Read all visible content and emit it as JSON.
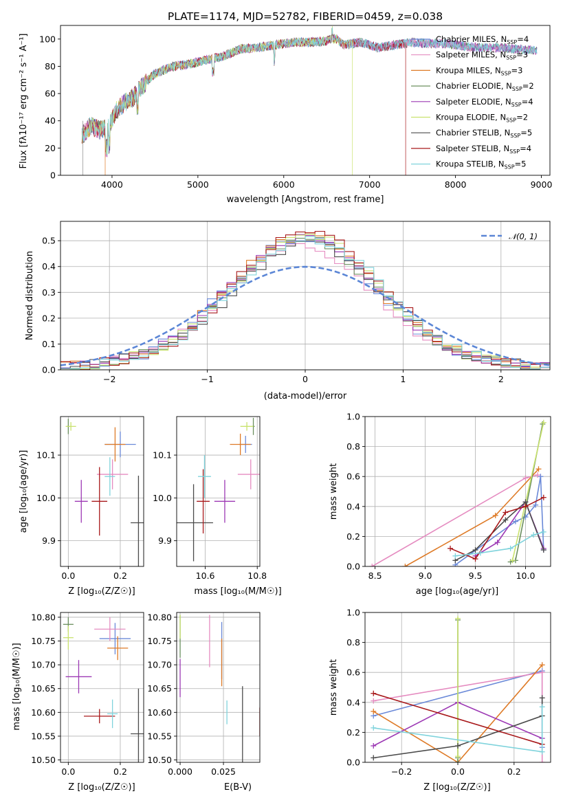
{
  "colors": [
    "#6a89d8",
    "#e58bc0",
    "#de7a26",
    "#6b8f5e",
    "#9c38b4",
    "#c9e26e",
    "#4a4a4a",
    "#a8191b",
    "#7fd3dc"
  ],
  "chart_data": [
    {
      "id": "spectrum",
      "type": "line",
      "title": "PLATE=1174, MJD=52782, FIBERID=0459, z=0.038",
      "xlabel": "wavelength [Angstrom, rest frame]",
      "ylabel": "Flux [fλ10⁻¹⁷ erg cm⁻² s⁻¹ A⁻¹]",
      "xlim": [
        3400,
        9100
      ],
      "ylim": [
        0,
        110
      ],
      "xticks": [
        "4000",
        "5000",
        "6000",
        "7000",
        "8000",
        "9000"
      ],
      "yticks": [
        "0",
        "20",
        "40",
        "60",
        "80",
        "100"
      ],
      "legend_position": "top-right",
      "series": [
        {
          "name": "Chabrier MILES, N",
          "sub": "SSP",
          "suffix": "=4"
        },
        {
          "name": "Salpeter MILES, N",
          "sub": "SSP",
          "suffix": "=3"
        },
        {
          "name": "Kroupa MILES, N",
          "sub": "SSP",
          "suffix": "=3"
        },
        {
          "name": "Chabrier ELODIE, N",
          "sub": "SSP",
          "suffix": "=2"
        },
        {
          "name": "Salpeter ELODIE, N",
          "sub": "SSP",
          "suffix": "=4"
        },
        {
          "name": "Kroupa ELODIE, N",
          "sub": "SSP",
          "suffix": "=2"
        },
        {
          "name": "Chabrier STELIB, N",
          "sub": "SSP",
          "suffix": "=5"
        },
        {
          "name": "Salpeter STELIB, N",
          "sub": "SSP",
          "suffix": "=4"
        },
        {
          "name": "Kroupa STELIB, N",
          "sub": "SSP",
          "suffix": "=5"
        }
      ],
      "continuum_x": [
        3650,
        3750,
        3850,
        3950,
        4050,
        4150,
        4250,
        4350,
        4500,
        4700,
        4900,
        5100,
        5300,
        5500,
        5700,
        5900,
        6100,
        6300,
        6500,
        6600,
        6700,
        6900,
        7100,
        7300,
        7500,
        7700,
        7900,
        8100,
        8300,
        8500,
        8700,
        8900
      ],
      "continuum_y": [
        30,
        37,
        34,
        35,
        48,
        54,
        58,
        66,
        75,
        80,
        82,
        85,
        88,
        93,
        94,
        96,
        98,
        98,
        99,
        101,
        96,
        98,
        94,
        96,
        98,
        97,
        97,
        95,
        94,
        94,
        93,
        92
      ],
      "cutoffs": [
        {
          "x": 3920,
          "series": 2
        },
        {
          "x": 6800,
          "series": 5
        },
        {
          "x": 7420,
          "series": 7
        }
      ]
    },
    {
      "id": "residuals",
      "type": "histogram",
      "xlabel": "(data-model)/error",
      "ylabel": "Normed distribution",
      "xlim": [
        -2.5,
        2.5
      ],
      "ylim": [
        0,
        0.575
      ],
      "xticks": [
        "−2",
        "−1",
        "0",
        "1",
        "2"
      ],
      "yticks": [
        "0.0",
        "0.1",
        "0.2",
        "0.3",
        "0.4",
        "0.5"
      ],
      "reference_curve": "𝒩(0, 1)",
      "legend_position": "top-right"
    },
    {
      "id": "age-vs-Z",
      "type": "scatter",
      "xlabel": "Z [log₁₀(Z/Z☉)]",
      "ylabel": "age  [log₁₀(age/yr)]",
      "xlim": [
        -0.03,
        0.29
      ],
      "ylim": [
        9.84,
        10.19
      ],
      "xticks": [
        "0.0",
        "0.2"
      ],
      "yticks": [
        "9.9",
        "10.0",
        "10.1"
      ],
      "points": [
        {
          "x": 0.2,
          "y": 10.125,
          "ex": 0.06,
          "ey": 0.03
        },
        {
          "x": 0.17,
          "y": 10.055,
          "ex": 0.06,
          "ey": 0.035
        },
        {
          "x": 0.18,
          "y": 10.125,
          "ex": 0.04,
          "ey": 0.04
        },
        {
          "x": 0.0,
          "y": 10.167,
          "ex": 0.005,
          "ey": 0.018
        },
        {
          "x": 0.05,
          "y": 9.992,
          "ex": 0.025,
          "ey": 0.05
        },
        {
          "x": 0.01,
          "y": 10.167,
          "ex": 0.02,
          "ey": 0.01
        },
        {
          "x": 0.27,
          "y": 9.942,
          "ex": 0.03,
          "ey": 0.11
        },
        {
          "x": 0.12,
          "y": 9.992,
          "ex": 0.03,
          "ey": 0.08
        },
        {
          "x": 0.16,
          "y": 10.05,
          "ex": 0.02,
          "ey": 0.045
        }
      ]
    },
    {
      "id": "age-vs-mass",
      "type": "scatter",
      "xlabel": "mass [log₁₀(M/M☉)]",
      "ylabel": "",
      "xlim": [
        10.49,
        10.81
      ],
      "ylim": [
        9.84,
        10.19
      ],
      "xticks": [
        "10.6",
        "10.8"
      ],
      "yticks": [
        "9.9",
        "10.0",
        "10.1"
      ],
      "points": [
        {
          "x": 10.755,
          "y": 10.125,
          "ex": 0.025,
          "ey": 0.02
        },
        {
          "x": 10.775,
          "y": 10.055,
          "ex": 0.05,
          "ey": 0.035
        },
        {
          "x": 10.735,
          "y": 10.125,
          "ex": 0.04,
          "ey": 0.025
        },
        {
          "x": 10.785,
          "y": 10.167,
          "ex": 0.005,
          "ey": 0.02
        },
        {
          "x": 10.675,
          "y": 9.992,
          "ex": 0.04,
          "ey": 0.05
        },
        {
          "x": 10.76,
          "y": 10.167,
          "ex": 0.025,
          "ey": 0.01
        },
        {
          "x": 10.555,
          "y": 9.942,
          "ex": 0.075,
          "ey": 0.09
        },
        {
          "x": 10.592,
          "y": 9.992,
          "ex": 0.025,
          "ey": 0.075
        },
        {
          "x": 10.597,
          "y": 10.05,
          "ex": 0.025,
          "ey": 0.05
        }
      ]
    },
    {
      "id": "mass-weight-vs-age",
      "type": "line",
      "xlabel": "age  [log₁₀(age/yr)]",
      "ylabel": "mass weight",
      "xlim": [
        8.4,
        10.25
      ],
      "ylim": [
        0,
        1
      ],
      "xticks": [
        "8.5",
        "9.0",
        "9.5",
        "10.0"
      ],
      "yticks": [
        "0.0",
        "0.2",
        "0.4",
        "0.6",
        "0.8",
        "1.0"
      ],
      "series": [
        {
          "x": [
            9.3,
            9.9,
            10.0,
            10.1,
            10.15,
            10.18
          ],
          "y": [
            0.01,
            0.3,
            0.33,
            0.41,
            0.6,
            0.11
          ]
        },
        {
          "x": [
            8.47,
            10.0,
            10.12
          ],
          "y": [
            0.0,
            0.59,
            0.61
          ]
        },
        {
          "x": [
            8.8,
            9.7,
            10.13
          ],
          "y": [
            0.0,
            0.34,
            0.65
          ]
        },
        {
          "x": [
            9.85,
            9.9,
            10.17
          ],
          "y": [
            0.03,
            0.04,
            0.95
          ]
        },
        {
          "x": [
            9.5,
            9.72,
            10.0,
            10.18
          ],
          "y": [
            0.07,
            0.16,
            0.43,
            0.12
          ]
        },
        {
          "x": [
            9.87,
            10.18
          ],
          "y": [
            0.04,
            0.96
          ]
        },
        {
          "x": [
            9.3,
            9.5,
            9.8,
            10.0,
            10.18
          ],
          "y": [
            0.04,
            0.11,
            0.31,
            0.43,
            0.11
          ]
        },
        {
          "x": [
            9.25,
            9.5,
            9.8,
            10.0,
            10.18
          ],
          "y": [
            0.12,
            0.05,
            0.36,
            0.4,
            0.46
          ]
        },
        {
          "x": [
            9.3,
            9.55,
            9.85,
            10.08,
            10.18
          ],
          "y": [
            0.07,
            0.09,
            0.12,
            0.21,
            0.23
          ]
        }
      ]
    },
    {
      "id": "mass-vs-Z",
      "type": "scatter",
      "xlabel": "Z [log₁₀(Z/Z☉)]",
      "ylabel": "mass [log₁₀(M/M☉)]",
      "xlim": [
        -0.03,
        0.29
      ],
      "ylim": [
        10.495,
        10.81
      ],
      "xticks": [
        "0.0",
        "0.2"
      ],
      "yticks": [
        "10.50",
        "10.55",
        "10.60",
        "10.65",
        "10.70",
        "10.75",
        "10.80"
      ],
      "points": [
        {
          "x": 0.18,
          "y": 10.755,
          "ex": 0.06,
          "ey": 0.033
        },
        {
          "x": 0.16,
          "y": 10.775,
          "ex": 0.06,
          "ey": 0.025
        },
        {
          "x": 0.19,
          "y": 10.735,
          "ex": 0.04,
          "ey": 0.025
        },
        {
          "x": 0.0,
          "y": 10.785,
          "ex": 0.02,
          "ey": 0.015
        },
        {
          "x": 0.04,
          "y": 10.675,
          "ex": 0.05,
          "ey": 0.035
        },
        {
          "x": 0.0,
          "y": 10.757,
          "ex": 0.02,
          "ey": 0.025
        },
        {
          "x": 0.27,
          "y": 10.555,
          "ex": 0.03,
          "ey": 0.095
        },
        {
          "x": 0.12,
          "y": 10.592,
          "ex": 0.06,
          "ey": 0.015
        },
        {
          "x": 0.17,
          "y": 10.597,
          "ex": 0.02,
          "ey": 0.03
        }
      ]
    },
    {
      "id": "mass-vs-ebv",
      "type": "scatter",
      "xlabel": "E(B-V)",
      "ylabel": "",
      "xlim": [
        -0.002,
        0.046
      ],
      "ylim": [
        10.495,
        10.81
      ],
      "xticks": [
        "0.000",
        "0.025"
      ],
      "yticks": [
        "10.50",
        "10.55",
        "10.60",
        "10.65",
        "10.70",
        "10.75",
        "10.80"
      ],
      "points": [
        {
          "x": 0.024,
          "y": 10.73,
          "ex": 0,
          "ey": 0.06
        },
        {
          "x": 0.017,
          "y": 10.75,
          "ex": 0,
          "ey": 0.055
        },
        {
          "x": 0.024,
          "y": 10.705,
          "ex": 0,
          "ey": 0.05
        },
        {
          "x": 0.0,
          "y": 10.76,
          "ex": 0,
          "ey": 0.045
        },
        {
          "x": 0.0,
          "y": 10.672,
          "ex": 0,
          "ey": 0.04
        },
        {
          "x": 0.0,
          "y": 10.78,
          "ex": 0,
          "ey": 0.025
        },
        {
          "x": 0.036,
          "y": 10.555,
          "ex": 0,
          "ey": 0.1
        },
        {
          "x": 0.046,
          "y": 10.58,
          "ex": 0,
          "ey": 0.03
        },
        {
          "x": 0.027,
          "y": 10.6,
          "ex": 0,
          "ey": 0.025
        }
      ]
    },
    {
      "id": "mass-weight-vs-Z",
      "type": "line",
      "xlabel": "Z [log₁₀(Z/Z☉)]",
      "ylabel": "mass weight",
      "xlim": [
        -0.33,
        0.33
      ],
      "ylim": [
        0,
        1
      ],
      "xticks": [
        "−0.2",
        "0.0",
        "0.2"
      ],
      "yticks": [
        "0.0",
        "0.2",
        "0.4",
        "0.6",
        "0.8",
        "1.0"
      ],
      "series": [
        {
          "x": [
            -0.3,
            0.3,
            0.3
          ],
          "y": [
            0.31,
            0.61,
            0.1
          ]
        },
        {
          "x": [
            -0.3,
            0.3,
            0.3
          ],
          "y": [
            0.41,
            0.6,
            0.0
          ]
        },
        {
          "x": [
            -0.3,
            0.0,
            0.3
          ],
          "y": [
            0.34,
            0.0,
            0.65
          ]
        },
        {
          "x": [
            0.0,
            0.0,
            0.0
          ],
          "y": [
            0.0,
            0.03,
            0.95
          ]
        },
        {
          "x": [
            -0.3,
            0.0,
            0.3
          ],
          "y": [
            0.11,
            0.4,
            0.16
          ]
        },
        {
          "x": [
            0.0,
            0.0
          ],
          "y": [
            0.04,
            0.96
          ]
        },
        {
          "x": [
            -0.3,
            0.0,
            0.3,
            0.3
          ],
          "y": [
            0.03,
            0.11,
            0.31,
            0.43
          ]
        },
        {
          "x": [
            -0.3,
            0.3
          ],
          "y": [
            0.46,
            0.12
          ]
        },
        {
          "x": [
            -0.3,
            0.3,
            0.3
          ],
          "y": [
            0.23,
            0.07,
            0.37
          ]
        }
      ]
    }
  ]
}
